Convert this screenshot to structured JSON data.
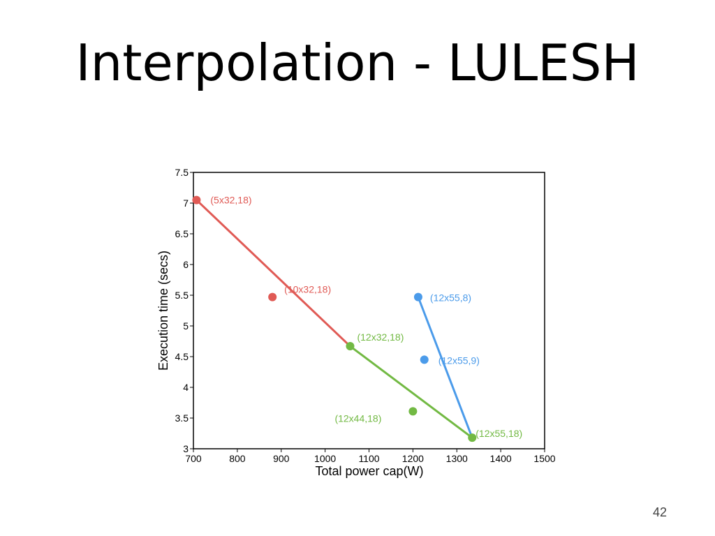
{
  "slide": {
    "title": "Interpolation - LULESH",
    "page_number": "42"
  },
  "colors": {
    "red": "#e05a55",
    "green": "#72b943",
    "blue": "#4b9bea"
  },
  "chart_data": {
    "type": "scatter",
    "title": "",
    "xlabel": "Total power cap(W)",
    "ylabel": "Execution time (secs)",
    "xlim": [
      700,
      1500
    ],
    "ylim": [
      3,
      7.5
    ],
    "xticks": [
      700,
      800,
      900,
      1000,
      1100,
      1200,
      1300,
      1400,
      1500
    ],
    "yticks": [
      3,
      3.5,
      4,
      4.5,
      5,
      5.5,
      6,
      6.5,
      7,
      7.5
    ],
    "grid": false,
    "legend": "none",
    "points": [
      {
        "label": "(5x32,18)",
        "x": 707,
        "y": 7.05,
        "color": "red"
      },
      {
        "label": "(10x32,18)",
        "x": 880,
        "y": 5.47,
        "color": "red"
      },
      {
        "label": "(12x32,18)",
        "x": 1057,
        "y": 4.67,
        "color": "green"
      },
      {
        "label": "(12x44,18)",
        "x": 1200,
        "y": 3.61,
        "color": "green"
      },
      {
        "label": "(12x55,18)",
        "x": 1335,
        "y": 3.18,
        "color": "green"
      },
      {
        "label": "(12x55,8)",
        "x": 1212,
        "y": 5.47,
        "color": "blue"
      },
      {
        "label": "(12x55,9)",
        "x": 1226,
        "y": 4.45,
        "color": "blue"
      }
    ],
    "lines": [
      {
        "color": "red",
        "from": [
          707,
          7.05
        ],
        "to": [
          1057,
          4.67
        ]
      },
      {
        "color": "green",
        "from": [
          1057,
          4.67
        ],
        "to": [
          1335,
          3.18
        ]
      },
      {
        "color": "blue",
        "from": [
          1212,
          5.47
        ],
        "to": [
          1335,
          3.18
        ]
      }
    ]
  }
}
